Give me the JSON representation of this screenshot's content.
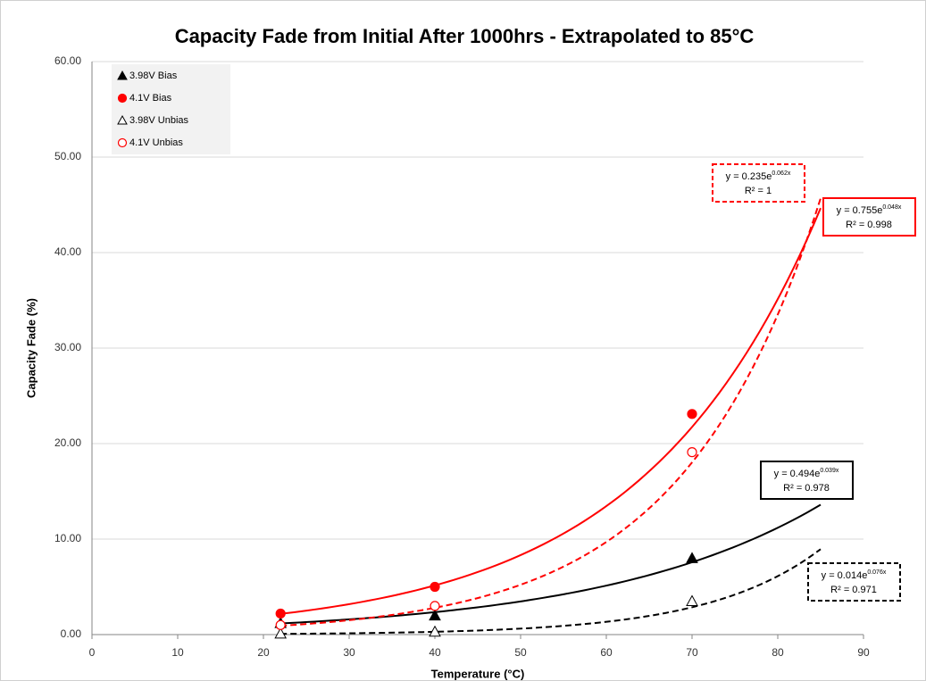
{
  "chart_data": {
    "type": "scatter",
    "title": "Capacity Fade from Initial After 1000hrs - Extrapolated to 85°C",
    "x_label": "Temperature (°C)",
    "y_label": "Capacity Fade (%)",
    "xlim": [
      0,
      90
    ],
    "ylim": [
      0,
      60
    ],
    "xticks": [
      0,
      10,
      20,
      30,
      40,
      50,
      60,
      70,
      80,
      90
    ],
    "yticks": [
      {
        "value": 0,
        "label": "0.00"
      },
      {
        "value": 10,
        "label": "10.00"
      },
      {
        "value": 20,
        "label": "20.00"
      },
      {
        "value": 30,
        "label": "30.00"
      },
      {
        "value": 40,
        "label": "40.00"
      },
      {
        "value": 50,
        "label": "50.00"
      },
      {
        "value": 60,
        "label": "60.00"
      }
    ],
    "grid": true,
    "legend": "top-left",
    "series": [
      {
        "name": "3.98V Bias",
        "color": "#000000",
        "marker": "triangle",
        "filled": true,
        "x": [
          22,
          40,
          70
        ],
        "values": [
          1.2,
          2.0,
          8.0
        ],
        "trendline": {
          "a": 0.494,
          "b": 0.039,
          "x_range": [
            22,
            85
          ],
          "dashed": false,
          "equation": "y = 0.494e",
          "exponent": "0.039x",
          "r2": "R² = 0.978"
        }
      },
      {
        "name": "4.1V Bias",
        "color": "#ff0000",
        "marker": "circle",
        "filled": true,
        "x": [
          22,
          40,
          70
        ],
        "values": [
          2.2,
          5.0,
          23.1
        ],
        "trendline": {
          "a": 0.755,
          "b": 0.048,
          "x_range": [
            22,
            85
          ],
          "dashed": false,
          "equation": "y = 0.755e",
          "exponent": "0.048x",
          "r2": "R² = 0.998"
        }
      },
      {
        "name": "3.98V Unbias",
        "color": "#000000",
        "marker": "triangle",
        "filled": false,
        "x": [
          22,
          40,
          70
        ],
        "values": [
          0.1,
          0.3,
          3.5
        ],
        "trendline": {
          "a": 0.014,
          "b": 0.076,
          "x_range": [
            22,
            85
          ],
          "dashed": true,
          "equation": "y = 0.014e",
          "exponent": "0.076x",
          "r2": "R² = 0.971"
        }
      },
      {
        "name": "4.1V Unbias",
        "color": "#ff0000",
        "marker": "circle",
        "filled": false,
        "x": [
          22,
          40,
          70
        ],
        "values": [
          1.0,
          3.0,
          19.1
        ],
        "trendline": {
          "a": 0.235,
          "b": 0.062,
          "x_range": [
            22,
            85
          ],
          "dashed": true,
          "equation": "y = 0.235e",
          "exponent": "0.062x",
          "r2": "R² = 1"
        }
      }
    ]
  }
}
